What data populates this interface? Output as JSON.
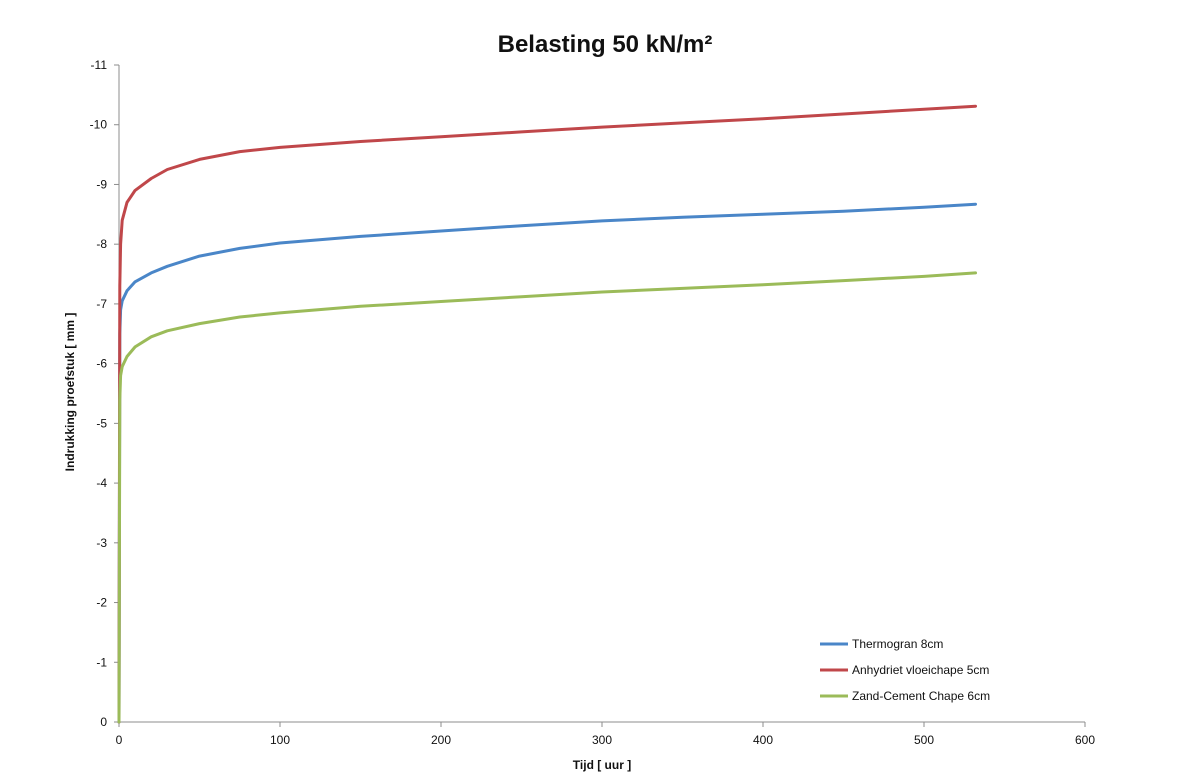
{
  "chart_data": {
    "type": "line",
    "title": "Belasting 50 kN/m²",
    "xlabel": "Tijd [ uur ]",
    "ylabel": "Indrukking proefstuk [ mm ]",
    "xlim": [
      0,
      600
    ],
    "ylim": [
      0,
      -11
    ],
    "xticks": [
      0,
      100,
      200,
      300,
      400,
      500,
      600
    ],
    "yticks": [
      0,
      -1,
      -2,
      -3,
      -4,
      -5,
      -6,
      -7,
      -8,
      -9,
      -10,
      -11
    ],
    "grid": false,
    "legend_position": "bottom-right",
    "series": [
      {
        "name": "Thermogran 8cm",
        "color": "#4a86c8",
        "x": [
          0,
          0.5,
          1,
          2,
          5,
          10,
          20,
          30,
          50,
          75,
          100,
          150,
          200,
          250,
          300,
          350,
          400,
          450,
          500,
          532
        ],
        "y": [
          0,
          -6.5,
          -6.9,
          -7.05,
          -7.22,
          -7.37,
          -7.52,
          -7.63,
          -7.8,
          -7.93,
          -8.02,
          -8.13,
          -8.22,
          -8.31,
          -8.39,
          -8.45,
          -8.5,
          -8.55,
          -8.62,
          -8.67
        ]
      },
      {
        "name": "Anhydriet vloeichape 5cm",
        "color": "#c0474a",
        "x": [
          0,
          0.5,
          1,
          2,
          5,
          10,
          20,
          30,
          50,
          75,
          100,
          150,
          200,
          250,
          300,
          350,
          400,
          450,
          500,
          532
        ],
        "y": [
          0,
          -7.3,
          -8.0,
          -8.4,
          -8.7,
          -8.9,
          -9.1,
          -9.25,
          -9.42,
          -9.55,
          -9.62,
          -9.72,
          -9.8,
          -9.88,
          -9.96,
          -10.03,
          -10.1,
          -10.18,
          -10.26,
          -10.31
        ]
      },
      {
        "name": "Zand-Cement Chape 6cm",
        "color": "#9bbb59",
        "x": [
          0,
          0.5,
          1,
          2,
          5,
          10,
          20,
          30,
          50,
          75,
          100,
          150,
          200,
          250,
          300,
          350,
          400,
          450,
          500,
          532
        ],
        "y": [
          0,
          -5.4,
          -5.8,
          -5.95,
          -6.12,
          -6.28,
          -6.45,
          -6.55,
          -6.67,
          -6.78,
          -6.85,
          -6.96,
          -7.04,
          -7.12,
          -7.2,
          -7.26,
          -7.32,
          -7.39,
          -7.46,
          -7.52
        ]
      }
    ]
  }
}
